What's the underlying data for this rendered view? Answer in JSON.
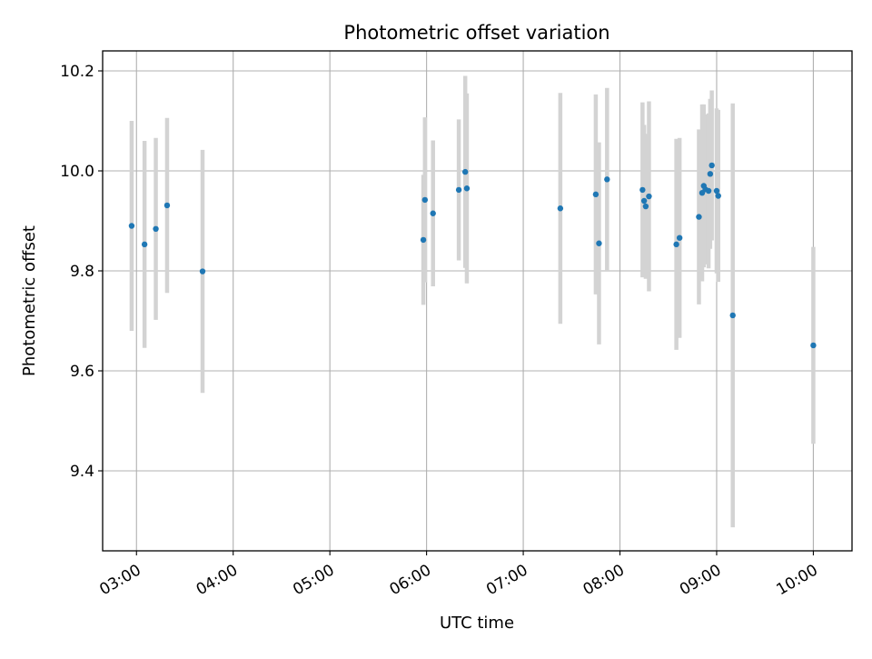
{
  "chart_data": {
    "type": "scatter",
    "title": "Photometric offset variation",
    "xlabel": "UTC time",
    "ylabel": "Photometric offset",
    "xlim": [
      "02:39",
      "10:24"
    ],
    "ylim": [
      9.24,
      10.24
    ],
    "x_ticks": [
      "03:00",
      "04:00",
      "05:00",
      "06:00",
      "07:00",
      "08:00",
      "09:00",
      "10:00"
    ],
    "y_ticks": [
      9.4,
      9.6,
      9.8,
      10.0,
      10.2
    ],
    "grid": true,
    "point_color": "#1f77b4",
    "errorbar_color": "#d3d3d3",
    "points": [
      {
        "t": "02:57",
        "y": 9.89,
        "err": 0.21
      },
      {
        "t": "03:05",
        "y": 9.853,
        "err": 0.207
      },
      {
        "t": "03:12",
        "y": 9.884,
        "err": 0.182
      },
      {
        "t": "03:19",
        "y": 9.931,
        "err": 0.175
      },
      {
        "t": "03:41",
        "y": 9.799,
        "err": 0.243
      },
      {
        "t": "05:58",
        "y": 9.862,
        "err": 0.13
      },
      {
        "t": "05:59",
        "y": 9.942,
        "err": 0.165
      },
      {
        "t": "06:04",
        "y": 9.915,
        "err": 0.146
      },
      {
        "t": "06:20",
        "y": 9.962,
        "err": 0.141
      },
      {
        "t": "06:24",
        "y": 9.998,
        "err": 0.192
      },
      {
        "t": "06:25",
        "y": 9.965,
        "err": 0.19
      },
      {
        "t": "07:23",
        "y": 9.925,
        "err": 0.231
      },
      {
        "t": "07:45",
        "y": 9.953,
        "err": 0.2
      },
      {
        "t": "07:47",
        "y": 9.855,
        "err": 0.202
      },
      {
        "t": "07:52",
        "y": 9.983,
        "err": 0.183
      },
      {
        "t": "08:14",
        "y": 9.962,
        "err": 0.175
      },
      {
        "t": "08:15",
        "y": 9.94,
        "err": 0.152
      },
      {
        "t": "08:16",
        "y": 9.929,
        "err": 0.145
      },
      {
        "t": "08:18",
        "y": 9.949,
        "err": 0.19
      },
      {
        "t": "08:35",
        "y": 9.853,
        "err": 0.211
      },
      {
        "t": "08:37",
        "y": 9.866,
        "err": 0.2
      },
      {
        "t": "08:49",
        "y": 9.908,
        "err": 0.175
      },
      {
        "t": "08:51",
        "y": 9.956,
        "err": 0.177
      },
      {
        "t": "08:52",
        "y": 9.97,
        "err": 0.163
      },
      {
        "t": "08:53",
        "y": 9.963,
        "err": 0.15
      },
      {
        "t": "08:55",
        "y": 9.96,
        "err": 0.155
      },
      {
        "t": "08:56",
        "y": 9.994,
        "err": 0.15
      },
      {
        "t": "08:57",
        "y": 10.011,
        "err": 0.15
      },
      {
        "t": "09:00",
        "y": 9.96,
        "err": 0.165
      },
      {
        "t": "09:01",
        "y": 9.95,
        "err": 0.172
      },
      {
        "t": "09:10",
        "y": 9.711,
        "err": 0.424
      },
      {
        "t": "10:00",
        "y": 9.651,
        "err": 0.197
      }
    ]
  }
}
